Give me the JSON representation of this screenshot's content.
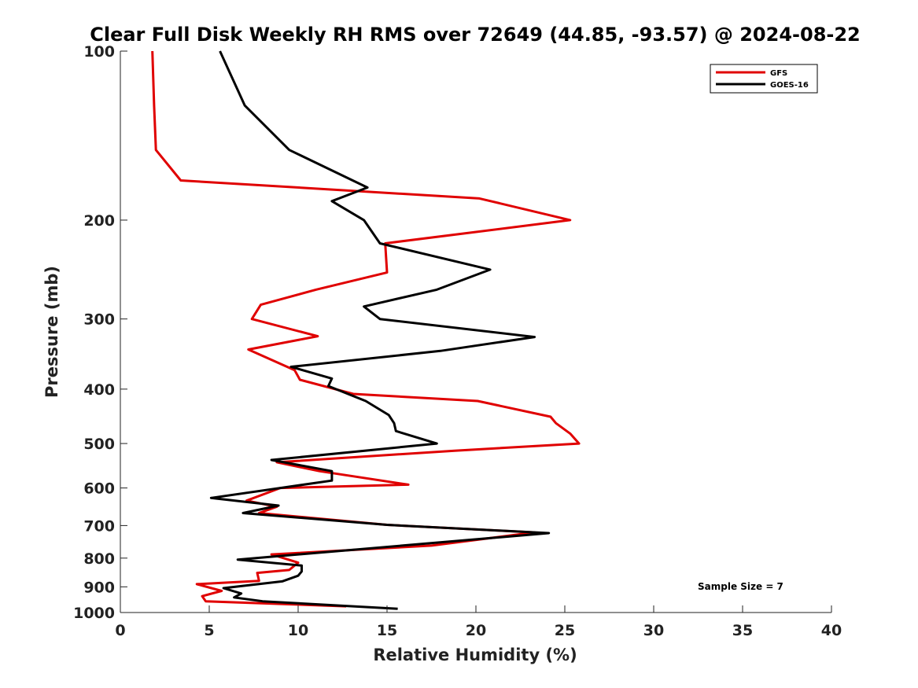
{
  "chart_data": {
    "type": "line",
    "title": "Clear Full Disk Weekly RH RMS over 72649 (44.85, -93.57) @ 2024-08-22",
    "xlabel": "Relative Humidity (%)",
    "ylabel": "Pressure (mb)",
    "xlim": [
      0,
      40
    ],
    "ylim": [
      100,
      1000
    ],
    "y_scale": "log",
    "y_reversed": true,
    "x_ticks": [
      "0",
      "5",
      "10",
      "15",
      "20",
      "25",
      "30",
      "35",
      "40"
    ],
    "y_ticks": [
      "100",
      "200",
      "300",
      "400",
      "500",
      "600",
      "700",
      "800",
      "900",
      "1000"
    ],
    "grid": false,
    "legend_position": "top-right",
    "annotation": "Sample Size = 7",
    "series": [
      {
        "name": "GFS",
        "color": "#e00000",
        "points": [
          [
            1.8,
            100
          ],
          [
            1.9,
            125
          ],
          [
            2.0,
            150
          ],
          [
            3.4,
            170
          ],
          [
            20.2,
            183
          ],
          [
            25.3,
            200
          ],
          [
            14.9,
            220
          ],
          [
            15.0,
            248
          ],
          [
            11.0,
            266
          ],
          [
            7.9,
            283
          ],
          [
            7.4,
            300
          ],
          [
            11.1,
            322
          ],
          [
            7.2,
            340
          ],
          [
            9.8,
            370
          ],
          [
            10.1,
            385
          ],
          [
            13.1,
            408
          ],
          [
            20.1,
            420
          ],
          [
            24.2,
            448
          ],
          [
            24.5,
            460
          ],
          [
            25.3,
            480
          ],
          [
            25.8,
            500
          ],
          [
            18.8,
            515
          ],
          [
            8.8,
            540
          ],
          [
            11.2,
            560
          ],
          [
            16.2,
            592
          ],
          [
            9.0,
            600
          ],
          [
            7.1,
            632
          ],
          [
            8.8,
            648
          ],
          [
            7.8,
            665
          ],
          [
            15.0,
            698
          ],
          [
            23.3,
            720
          ],
          [
            17.5,
            760
          ],
          [
            8.5,
            788
          ],
          [
            10.0,
            815
          ],
          [
            9.5,
            840
          ],
          [
            7.7,
            850
          ],
          [
            7.8,
            878
          ],
          [
            4.3,
            890
          ],
          [
            5.7,
            915
          ],
          [
            4.6,
            935
          ],
          [
            4.8,
            955
          ],
          [
            12.7,
            975
          ]
        ]
      },
      {
        "name": "GOES-16",
        "color": "#000000",
        "points": [
          [
            5.6,
            100
          ],
          [
            7.0,
            125
          ],
          [
            9.5,
            150
          ],
          [
            13.9,
            175
          ],
          [
            11.9,
            185
          ],
          [
            13.7,
            200
          ],
          [
            14.6,
            220
          ],
          [
            20.8,
            245
          ],
          [
            17.8,
            266
          ],
          [
            13.7,
            285
          ],
          [
            14.6,
            300
          ],
          [
            23.3,
            323
          ],
          [
            18.0,
            342
          ],
          [
            9.6,
            365
          ],
          [
            11.9,
            383
          ],
          [
            11.7,
            395
          ],
          [
            13.8,
            420
          ],
          [
            15.1,
            445
          ],
          [
            15.4,
            460
          ],
          [
            15.5,
            475
          ],
          [
            17.8,
            500
          ],
          [
            8.5,
            535
          ],
          [
            11.9,
            560
          ],
          [
            11.9,
            582
          ],
          [
            9.0,
            600
          ],
          [
            5.1,
            625
          ],
          [
            8.9,
            645
          ],
          [
            6.9,
            665
          ],
          [
            15.0,
            698
          ],
          [
            24.1,
            722
          ],
          [
            6.6,
            805
          ],
          [
            10.2,
            825
          ],
          [
            10.2,
            845
          ],
          [
            10.0,
            860
          ],
          [
            9.1,
            880
          ],
          [
            5.8,
            905
          ],
          [
            6.8,
            925
          ],
          [
            6.4,
            940
          ],
          [
            8.0,
            955
          ],
          [
            15.6,
            985
          ]
        ]
      }
    ]
  }
}
